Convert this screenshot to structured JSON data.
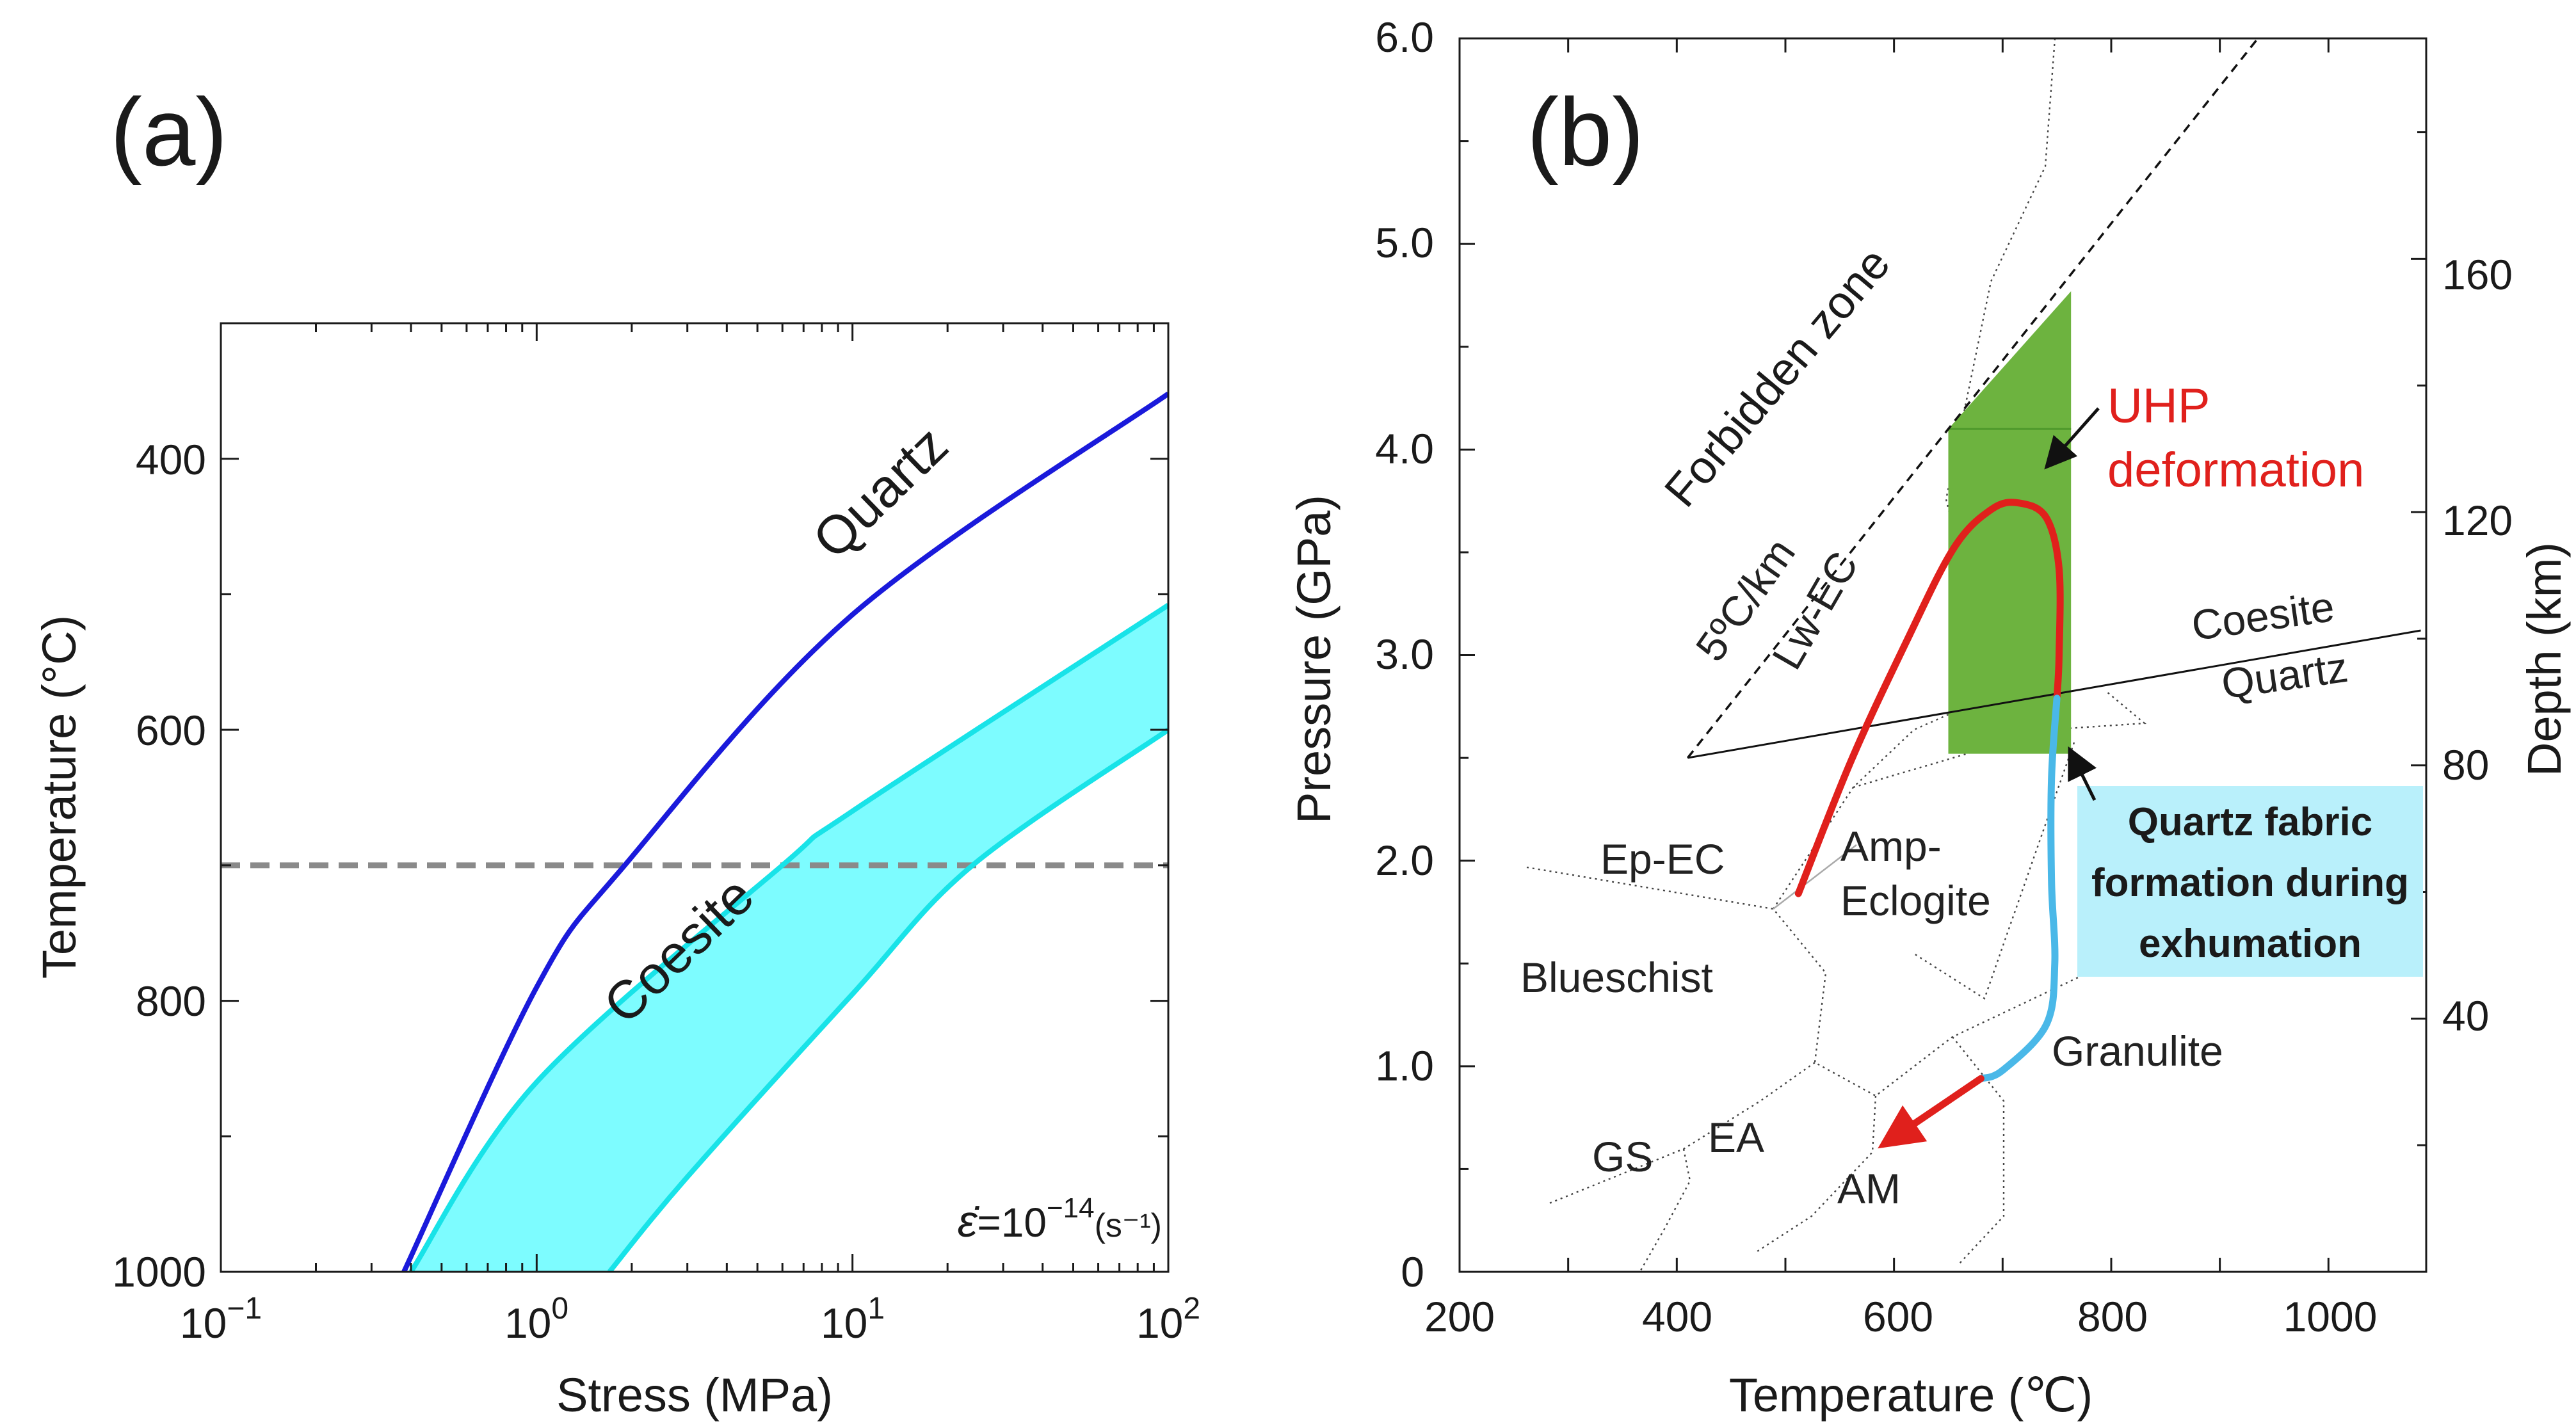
{
  "chart_data": [
    {
      "panel": "(a)",
      "type": "line",
      "xlabel": "Stress (MPa)",
      "ylabel": "Temperature (°C)",
      "xscale": "log",
      "xlim": [
        0.1,
        100
      ],
      "ylim": [
        1000,
        300
      ],
      "xtick_labels": [
        {
          "value": 0.1,
          "base": "10",
          "exp": "−1"
        },
        {
          "value": 1,
          "base": "10",
          "exp": "0"
        },
        {
          "value": 10,
          "base": "10",
          "exp": "1"
        },
        {
          "value": 100,
          "base": "10",
          "exp": "2"
        }
      ],
      "yticks": [
        400,
        600,
        800,
        1000
      ],
      "series": [
        {
          "name": "Quartz",
          "color": "#1a1adb",
          "points": [
            [
              0.38,
              1000
            ],
            [
              1.0,
              790
            ],
            [
              1.9,
              700
            ],
            [
              10,
              515
            ],
            [
              100,
              352
            ]
          ]
        },
        {
          "name": "Coesite (upper bound)",
          "color": "#18e3e8",
          "points": [
            [
              0.4,
              1000
            ],
            [
              1.0,
              860
            ],
            [
              6,
              700
            ],
            [
              10,
              660
            ],
            [
              100,
              508
            ]
          ]
        },
        {
          "name": "Coesite (lower bound)",
          "color": "#18e3e8",
          "points": [
            [
              1.7,
              1000
            ],
            [
              3,
              930
            ],
            [
              10,
              795
            ],
            [
              24,
              700
            ],
            [
              100,
              600
            ]
          ]
        }
      ],
      "band": {
        "name": "Coesite",
        "fill": "#7dfcff"
      },
      "hline": {
        "y": 700,
        "style": "dashed",
        "color": "#8a8a8a"
      },
      "labels": {
        "quartz": "Quartz",
        "coesite": "Coesite"
      },
      "strain_rate": {
        "symbol": "ε̇",
        "eq": "=10",
        "exp": "−14",
        "unit": "(s⁻¹)"
      }
    },
    {
      "panel": "(b)",
      "type": "line",
      "xlabel": "Temperature (℃)",
      "ylabel": "Pressure (GPa)",
      "y2label": "Depth (km)",
      "xlim": [
        200,
        1090
      ],
      "ylim": [
        0,
        6
      ],
      "xticks": [
        200,
        400,
        600,
        800,
        1000
      ],
      "ytick_labels": [
        "0",
        "1.0",
        "2.0",
        "3.0",
        "4.0",
        "5.0",
        "6.0"
      ],
      "y2ticks": [
        40,
        80,
        120,
        160
      ],
      "geotherm": {
        "label": "5ºC/km",
        "points": [
          [
            410,
            2.5
          ],
          [
            935,
            6.0
          ]
        ]
      },
      "coesite_quartz_boundary": {
        "points": [
          [
            410,
            2.5
          ],
          [
            1085,
            3.12
          ]
        ],
        "upper": "Coesite",
        "lower": "Quartz"
      },
      "green_box": {
        "t_min": 650,
        "t_max": 763,
        "p_min": 2.52,
        "p_max": 4.77,
        "color": "#6db33f"
      },
      "ptt_path": {
        "uhp_segment": {
          "color": "#e0201c",
          "points": [
            [
              512,
              1.84
            ],
            [
              560,
              2.48
            ],
            [
              610,
              3.05
            ],
            [
              655,
              3.52
            ],
            [
              690,
              3.71
            ],
            [
              715,
              3.74
            ],
            [
              740,
              3.67
            ],
            [
              752,
              3.42
            ],
            [
              752,
              3.0
            ],
            [
              750,
              2.79
            ]
          ]
        },
        "exhumation_segment": {
          "color": "#4ab8e8",
          "points": [
            [
              750,
              2.79
            ],
            [
              745,
              2.4
            ],
            [
              745,
              1.9
            ],
            [
              748,
              1.5
            ],
            [
              740,
              1.2
            ],
            [
              700,
              0.98
            ],
            [
              680,
              0.94
            ]
          ]
        },
        "return_arrow": {
          "color": "#e0201c",
          "points": [
            [
              680,
              0.94
            ],
            [
              585,
              0.6
            ]
          ]
        }
      },
      "facies": [
        "Blueschist",
        "Ep-EC",
        "Amp-",
        "Eclogite",
        "Lw-EC",
        "Granulite",
        "GS",
        "EA",
        "AM"
      ],
      "annotations": {
        "forbidden_zone": "Forbidden zone",
        "uhp_line1": "UHP",
        "uhp_line2": "deformation",
        "qf_line1": "Quartz fabric",
        "qf_line2": "formation during",
        "qf_line3": "exhumation",
        "qf_box_color": "#b9f0fb"
      }
    }
  ]
}
